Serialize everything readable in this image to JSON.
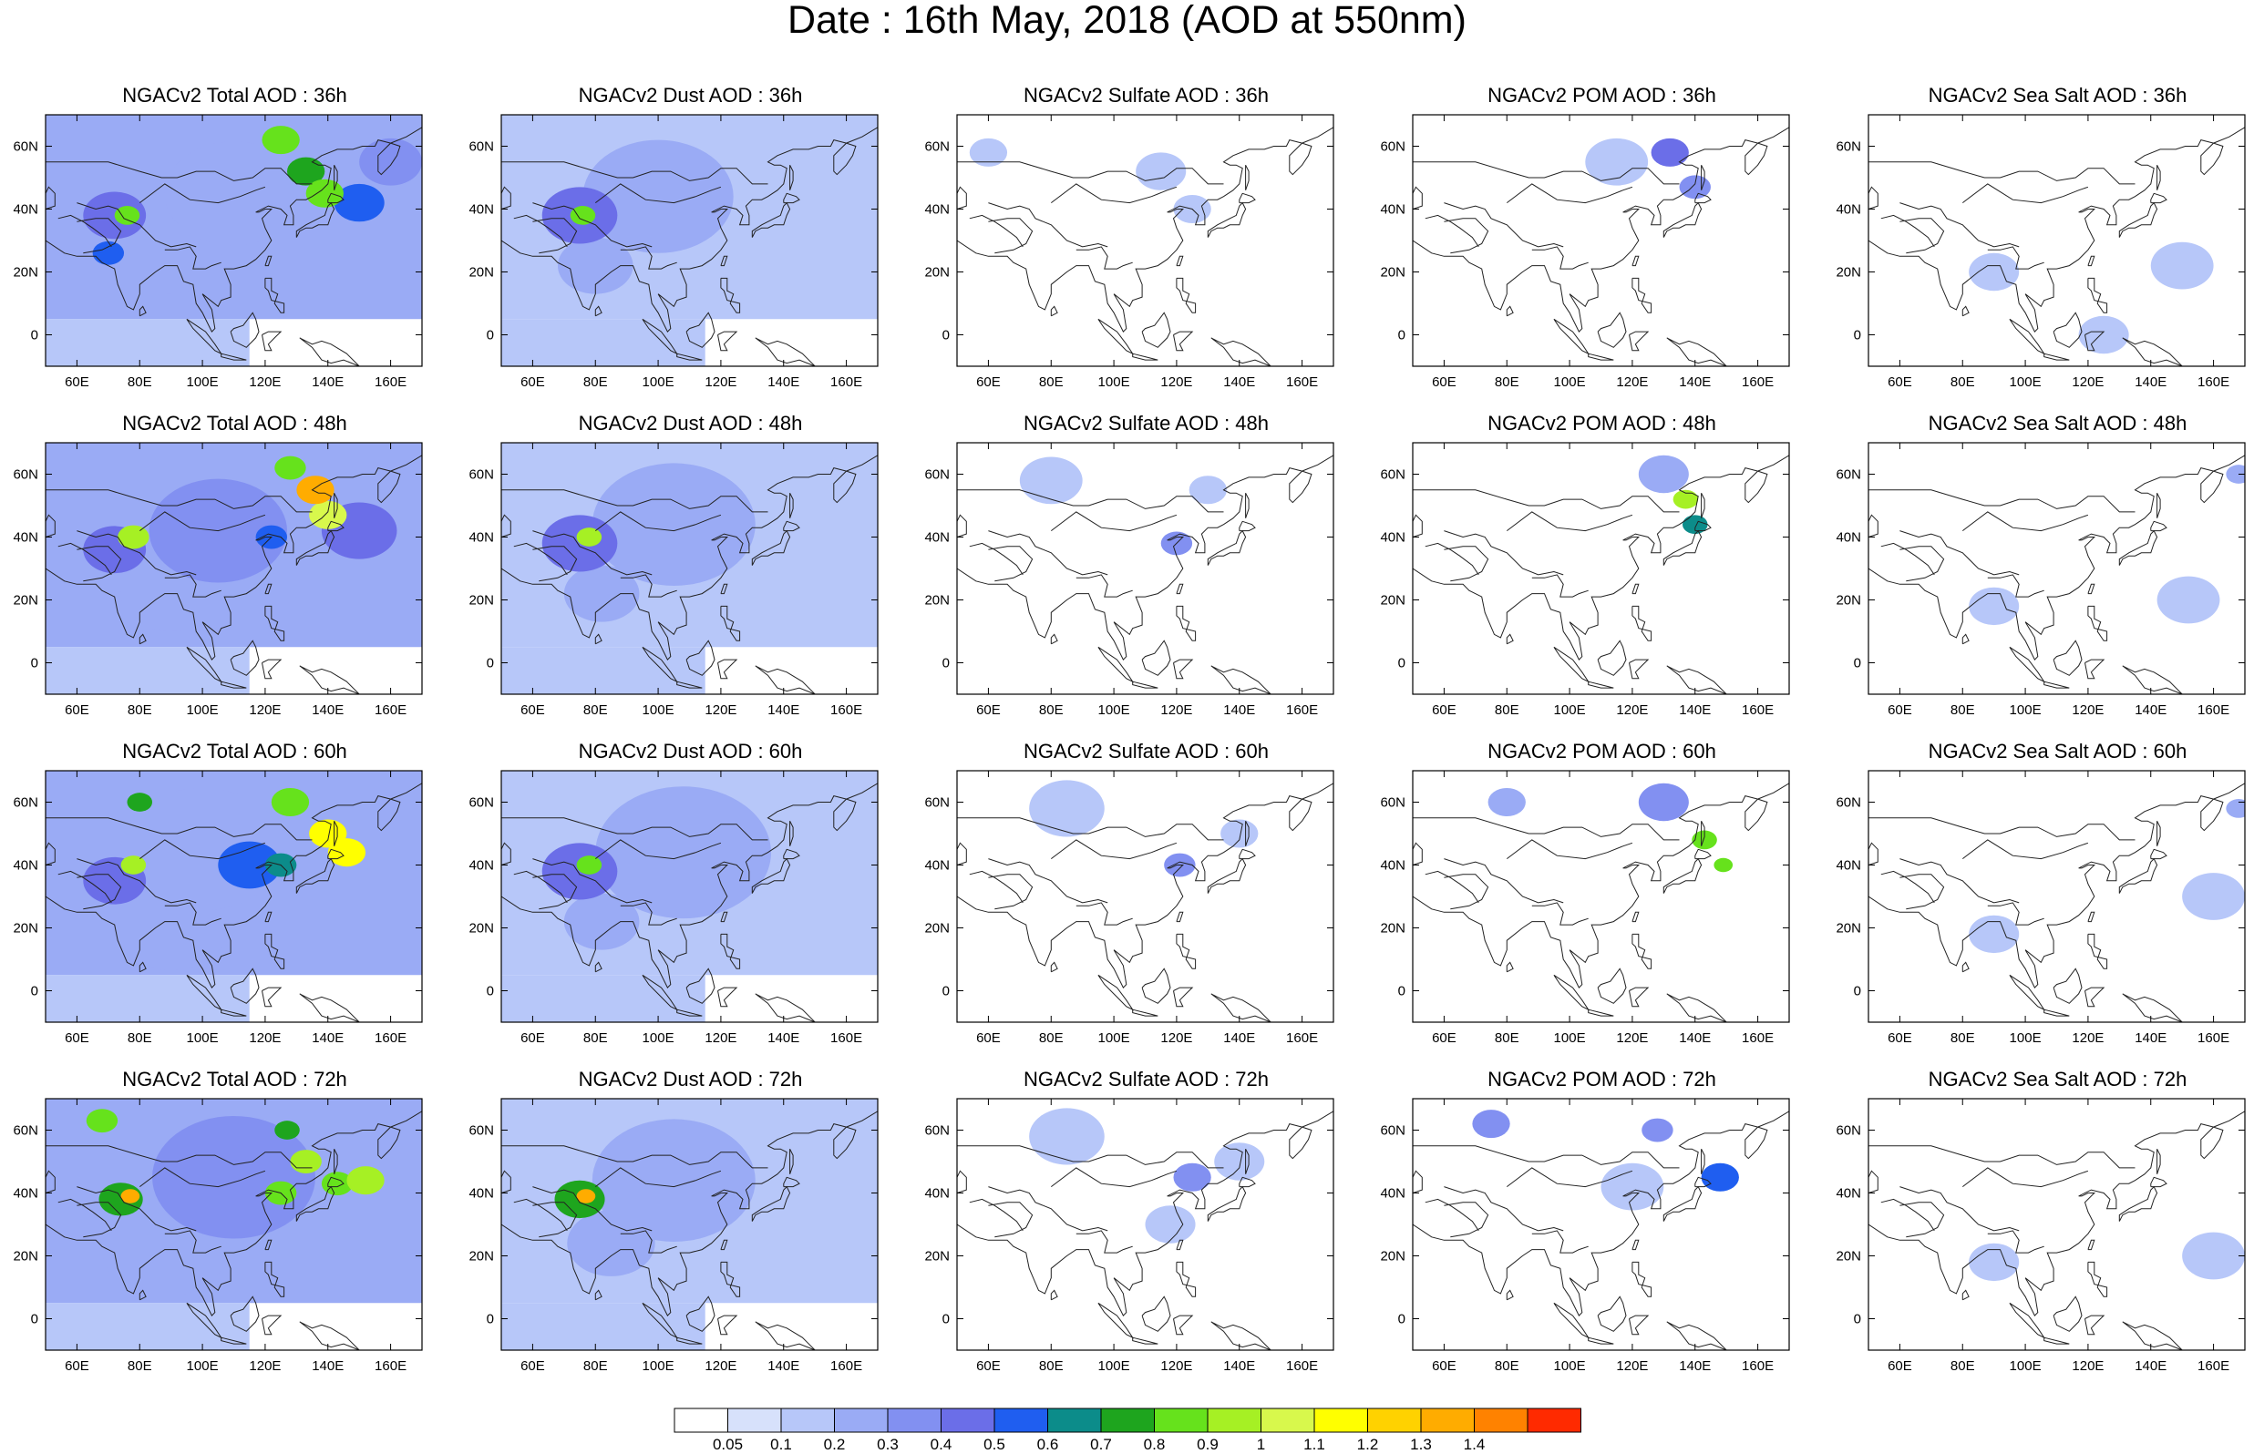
{
  "title": "Date : 16th May, 2018 (AOD at 550nm)",
  "panels": [
    {
      "title": "NGACv2 Total AOD : 36h",
      "species": "total",
      "forecast_hour": "36h"
    },
    {
      "title": "NGACv2 Dust AOD : 36h",
      "species": "dust",
      "forecast_hour": "36h"
    },
    {
      "title": "NGACv2 Sulfate AOD : 36h",
      "species": "sulfate",
      "forecast_hour": "36h"
    },
    {
      "title": "NGACv2 POM AOD : 36h",
      "species": "pom",
      "forecast_hour": "36h"
    },
    {
      "title": "NGACv2 Sea Salt AOD : 36h",
      "species": "seasalt",
      "forecast_hour": "36h"
    },
    {
      "title": "NGACv2 Total AOD : 48h",
      "species": "total",
      "forecast_hour": "48h"
    },
    {
      "title": "NGACv2 Dust AOD : 48h",
      "species": "dust",
      "forecast_hour": "48h"
    },
    {
      "title": "NGACv2 Sulfate AOD : 48h",
      "species": "sulfate",
      "forecast_hour": "48h"
    },
    {
      "title": "NGACv2 POM AOD : 48h",
      "species": "pom",
      "forecast_hour": "48h"
    },
    {
      "title": "NGACv2 Sea Salt AOD : 48h",
      "species": "seasalt",
      "forecast_hour": "48h"
    },
    {
      "title": "NGACv2 Total AOD : 60h",
      "species": "total",
      "forecast_hour": "60h"
    },
    {
      "title": "NGACv2 Dust AOD : 60h",
      "species": "dust",
      "forecast_hour": "60h"
    },
    {
      "title": "NGACv2 Sulfate AOD : 60h",
      "species": "sulfate",
      "forecast_hour": "60h"
    },
    {
      "title": "NGACv2 POM AOD : 60h",
      "species": "pom",
      "forecast_hour": "60h"
    },
    {
      "title": "NGACv2 Sea Salt AOD : 60h",
      "species": "seasalt",
      "forecast_hour": "60h"
    },
    {
      "title": "NGACv2 Total AOD : 72h",
      "species": "total",
      "forecast_hour": "72h"
    },
    {
      "title": "NGACv2 Dust AOD : 72h",
      "species": "dust",
      "forecast_hour": "72h"
    },
    {
      "title": "NGACv2 Sulfate AOD : 72h",
      "species": "sulfate",
      "forecast_hour": "72h"
    },
    {
      "title": "NGACv2 POM AOD : 72h",
      "species": "pom",
      "forecast_hour": "72h"
    },
    {
      "title": "NGACv2 Sea Salt  AOD : 72h",
      "species": "seasalt",
      "forecast_hour": "72h"
    }
  ],
  "axes": {
    "lon_range": [
      50,
      170
    ],
    "lat_range": [
      -10,
      70
    ],
    "lon_ticks": [
      60,
      80,
      100,
      120,
      140,
      160
    ],
    "lon_tick_labels": [
      "60E",
      "80E",
      "100E",
      "120E",
      "140E",
      "160E"
    ],
    "lat_ticks": [
      0,
      20,
      40,
      60
    ],
    "lat_tick_labels": [
      "0",
      "20N",
      "40N",
      "60N"
    ]
  },
  "colorbar": {
    "labels": [
      "0.05",
      "0.1",
      "0.2",
      "0.3",
      "0.4",
      "0.5",
      "0.6",
      "0.7",
      "0.8",
      "0.9",
      "1",
      "1.1",
      "1.2",
      "1.3",
      "1.4"
    ],
    "colors": [
      "#ffffff",
      "#d7e1fb",
      "#b7c7f9",
      "#9aabf5",
      "#8290f1",
      "#6b6ee8",
      "#1f5ef0",
      "#0c8c8a",
      "#1ea51e",
      "#66e21c",
      "#a6f024",
      "#d8f84c",
      "#ffff00",
      "#ffd200",
      "#ffac00",
      "#ff8200",
      "#ff2a00"
    ]
  },
  "chart_data": {
    "type": "heatmap",
    "title": "Date : 16th May, 2018 (AOD at 550nm)",
    "xlabel": "",
    "ylabel": "",
    "xlim": [
      50,
      170
    ],
    "ylim": [
      -10,
      70
    ],
    "rows": [
      "36h",
      "48h",
      "60h",
      "72h"
    ],
    "columns": [
      "Total",
      "Dust",
      "Sulfate",
      "POM",
      "Sea Salt"
    ],
    "features": {
      "total": [
        [
          {
            "lon": 72,
            "lat": 38,
            "r": 10,
            "v": 0.45
          },
          {
            "lon": 76,
            "lat": 38,
            "r": 4,
            "v": 0.8
          },
          {
            "lon": 70,
            "lat": 26,
            "r": 5,
            "v": 0.5
          },
          {
            "lon": 110,
            "lat": 45,
            "r": 22,
            "v": 0.25
          },
          {
            "lon": 125,
            "lat": 62,
            "r": 6,
            "v": 0.8
          },
          {
            "lon": 133,
            "lat": 52,
            "r": 6,
            "v": 0.7
          },
          {
            "lon": 139,
            "lat": 45,
            "r": 6,
            "v": 0.8
          },
          {
            "lon": 150,
            "lat": 42,
            "r": 8,
            "v": 0.5
          },
          {
            "lon": 90,
            "lat": 25,
            "r": 16,
            "v": 0.2
          },
          {
            "lon": 160,
            "lat": 55,
            "r": 10,
            "v": 0.3
          }
        ],
        [
          {
            "lon": 78,
            "lat": 40,
            "r": 5,
            "v": 0.9
          },
          {
            "lon": 72,
            "lat": 36,
            "r": 10,
            "v": 0.45
          },
          {
            "lon": 136,
            "lat": 55,
            "r": 6,
            "v": 1.3
          },
          {
            "lon": 140,
            "lat": 47,
            "r": 6,
            "v": 1.0
          },
          {
            "lon": 128,
            "lat": 62,
            "r": 5,
            "v": 0.8
          },
          {
            "lon": 122,
            "lat": 40,
            "r": 5,
            "v": 0.5
          },
          {
            "lon": 150,
            "lat": 42,
            "r": 12,
            "v": 0.4
          },
          {
            "lon": 105,
            "lat": 42,
            "r": 22,
            "v": 0.3
          },
          {
            "lon": 90,
            "lat": 22,
            "r": 16,
            "v": 0.22
          }
        ],
        [
          {
            "lon": 78,
            "lat": 40,
            "r": 4,
            "v": 0.9
          },
          {
            "lon": 72,
            "lat": 35,
            "r": 10,
            "v": 0.45
          },
          {
            "lon": 140,
            "lat": 50,
            "r": 6,
            "v": 1.1
          },
          {
            "lon": 146,
            "lat": 44,
            "r": 6,
            "v": 1.15
          },
          {
            "lon": 128,
            "lat": 60,
            "r": 6,
            "v": 0.85
          },
          {
            "lon": 80,
            "lat": 60,
            "r": 4,
            "v": 0.75
          },
          {
            "lon": 115,
            "lat": 40,
            "r": 10,
            "v": 0.5
          },
          {
            "lon": 125,
            "lat": 40,
            "r": 5,
            "v": 0.65
          },
          {
            "lon": 100,
            "lat": 45,
            "r": 26,
            "v": 0.25
          },
          {
            "lon": 90,
            "lat": 20,
            "r": 18,
            "v": 0.2
          }
        ],
        [
          {
            "lon": 77,
            "lat": 39,
            "r": 3,
            "v": 1.35
          },
          {
            "lon": 74,
            "lat": 38,
            "r": 7,
            "v": 0.7
          },
          {
            "lon": 68,
            "lat": 63,
            "r": 5,
            "v": 0.8
          },
          {
            "lon": 127,
            "lat": 60,
            "r": 4,
            "v": 0.7
          },
          {
            "lon": 133,
            "lat": 50,
            "r": 5,
            "v": 0.9
          },
          {
            "lon": 143,
            "lat": 43,
            "r": 5,
            "v": 0.85
          },
          {
            "lon": 152,
            "lat": 44,
            "r": 6,
            "v": 0.95
          },
          {
            "lon": 125,
            "lat": 40,
            "r": 5,
            "v": 0.85
          },
          {
            "lon": 110,
            "lat": 45,
            "r": 26,
            "v": 0.3
          },
          {
            "lon": 88,
            "lat": 22,
            "r": 20,
            "v": 0.22
          }
        ]
      ],
      "dust": [
        [
          {
            "lon": 76,
            "lat": 38,
            "r": 4,
            "v": 0.8
          },
          {
            "lon": 75,
            "lat": 38,
            "r": 12,
            "v": 0.4
          },
          {
            "lon": 100,
            "lat": 44,
            "r": 24,
            "v": 0.25
          },
          {
            "lon": 80,
            "lat": 22,
            "r": 12,
            "v": 0.2
          }
        ],
        [
          {
            "lon": 78,
            "lat": 40,
            "r": 4,
            "v": 0.9
          },
          {
            "lon": 75,
            "lat": 38,
            "r": 12,
            "v": 0.4
          },
          {
            "lon": 105,
            "lat": 44,
            "r": 26,
            "v": 0.25
          },
          {
            "lon": 82,
            "lat": 22,
            "r": 12,
            "v": 0.2
          }
        ],
        [
          {
            "lon": 78,
            "lat": 40,
            "r": 4,
            "v": 0.85
          },
          {
            "lon": 75,
            "lat": 38,
            "r": 12,
            "v": 0.4
          },
          {
            "lon": 108,
            "lat": 44,
            "r": 28,
            "v": 0.25
          },
          {
            "lon": 82,
            "lat": 22,
            "r": 12,
            "v": 0.2
          }
        ],
        [
          {
            "lon": 77,
            "lat": 39,
            "r": 3,
            "v": 1.35
          },
          {
            "lon": 75,
            "lat": 38,
            "r": 8,
            "v": 0.7
          },
          {
            "lon": 105,
            "lat": 44,
            "r": 26,
            "v": 0.25
          },
          {
            "lon": 85,
            "lat": 24,
            "r": 14,
            "v": 0.2
          }
        ]
      ],
      "sulfate": [
        [
          {
            "lon": 115,
            "lat": 52,
            "r": 8,
            "v": 0.12
          },
          {
            "lon": 125,
            "lat": 40,
            "r": 6,
            "v": 0.15
          },
          {
            "lon": 60,
            "lat": 58,
            "r": 6,
            "v": 0.1
          }
        ],
        [
          {
            "lon": 80,
            "lat": 58,
            "r": 10,
            "v": 0.12
          },
          {
            "lon": 120,
            "lat": 38,
            "r": 5,
            "v": 0.3
          },
          {
            "lon": 130,
            "lat": 55,
            "r": 6,
            "v": 0.15
          }
        ],
        [
          {
            "lon": 85,
            "lat": 58,
            "r": 12,
            "v": 0.15
          },
          {
            "lon": 121,
            "lat": 40,
            "r": 5,
            "v": 0.35
          },
          {
            "lon": 140,
            "lat": 50,
            "r": 6,
            "v": 0.12
          }
        ],
        [
          {
            "lon": 85,
            "lat": 58,
            "r": 12,
            "v": 0.15
          },
          {
            "lon": 125,
            "lat": 45,
            "r": 6,
            "v": 0.3
          },
          {
            "lon": 118,
            "lat": 30,
            "r": 8,
            "v": 0.12
          },
          {
            "lon": 140,
            "lat": 50,
            "r": 8,
            "v": 0.12
          }
        ]
      ],
      "pom": [
        [
          {
            "lon": 132,
            "lat": 58,
            "r": 6,
            "v": 0.45
          },
          {
            "lon": 140,
            "lat": 47,
            "r": 5,
            "v": 0.35
          },
          {
            "lon": 115,
            "lat": 55,
            "r": 10,
            "v": 0.15
          }
        ],
        [
          {
            "lon": 137,
            "lat": 52,
            "r": 4,
            "v": 0.9
          },
          {
            "lon": 140,
            "lat": 44,
            "r": 4,
            "v": 0.6
          },
          {
            "lon": 130,
            "lat": 60,
            "r": 8,
            "v": 0.25
          }
        ],
        [
          {
            "lon": 143,
            "lat": 48,
            "r": 4,
            "v": 0.85
          },
          {
            "lon": 149,
            "lat": 40,
            "r": 3,
            "v": 0.8
          },
          {
            "lon": 130,
            "lat": 60,
            "r": 8,
            "v": 0.3
          },
          {
            "lon": 80,
            "lat": 60,
            "r": 6,
            "v": 0.25
          }
        ],
        [
          {
            "lon": 148,
            "lat": 45,
            "r": 6,
            "v": 0.5
          },
          {
            "lon": 128,
            "lat": 60,
            "r": 5,
            "v": 0.3
          },
          {
            "lon": 75,
            "lat": 62,
            "r": 6,
            "v": 0.3
          },
          {
            "lon": 120,
            "lat": 42,
            "r": 10,
            "v": 0.15
          }
        ]
      ],
      "seasalt": [
        [
          {
            "lon": 90,
            "lat": 20,
            "r": 8,
            "v": 0.12
          },
          {
            "lon": 150,
            "lat": 22,
            "r": 10,
            "v": 0.12
          },
          {
            "lon": 125,
            "lat": 0,
            "r": 8,
            "v": 0.1
          }
        ],
        [
          {
            "lon": 90,
            "lat": 18,
            "r": 8,
            "v": 0.12
          },
          {
            "lon": 152,
            "lat": 20,
            "r": 10,
            "v": 0.12
          },
          {
            "lon": 168,
            "lat": 60,
            "r": 4,
            "v": 0.2
          }
        ],
        [
          {
            "lon": 90,
            "lat": 18,
            "r": 8,
            "v": 0.12
          },
          {
            "lon": 160,
            "lat": 30,
            "r": 10,
            "v": 0.12
          },
          {
            "lon": 168,
            "lat": 58,
            "r": 4,
            "v": 0.25
          }
        ],
        [
          {
            "lon": 90,
            "lat": 18,
            "r": 8,
            "v": 0.12
          },
          {
            "lon": 160,
            "lat": 20,
            "r": 10,
            "v": 0.12
          }
        ]
      ]
    }
  }
}
